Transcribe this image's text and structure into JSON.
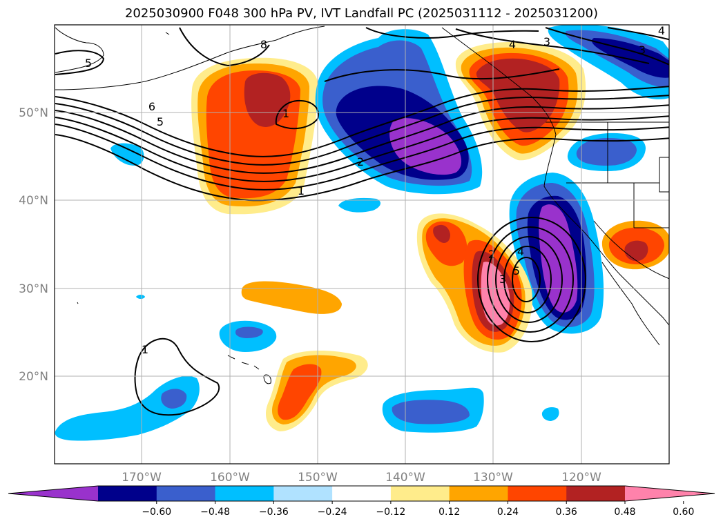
{
  "title": "2025030900 F048 300 hPa PV, IVT Landfall PC (2025031112 - 2025031200)",
  "map": {
    "lon_labels": [
      "170°W",
      "160°W",
      "150°W",
      "140°W",
      "130°W",
      "120°W"
    ],
    "lat_labels": [
      "50°N",
      "40°N",
      "30°N",
      "20°N"
    ],
    "gridlines": true
  },
  "colorbar": {
    "ticks": [
      "−0.60",
      "−0.48",
      "−0.36",
      "−0.24",
      "−0.12",
      "0.12",
      "0.24",
      "0.36",
      "0.48",
      "0.60"
    ],
    "colors": [
      "#9932cc",
      "#00008b",
      "#3a5fcd",
      "#00bfff",
      "#b0e2ff",
      "#ffffff",
      "#ffec8b",
      "#ffa500",
      "#ff4500",
      "#b22222",
      "#ff82ab"
    ],
    "extend": "both"
  },
  "pv_contour_labels": [
    "5",
    "6",
    "5",
    "1",
    "2",
    "1",
    "4",
    "3",
    "3",
    "4",
    "2",
    "3",
    "4",
    "5",
    "1",
    "8"
  ]
}
